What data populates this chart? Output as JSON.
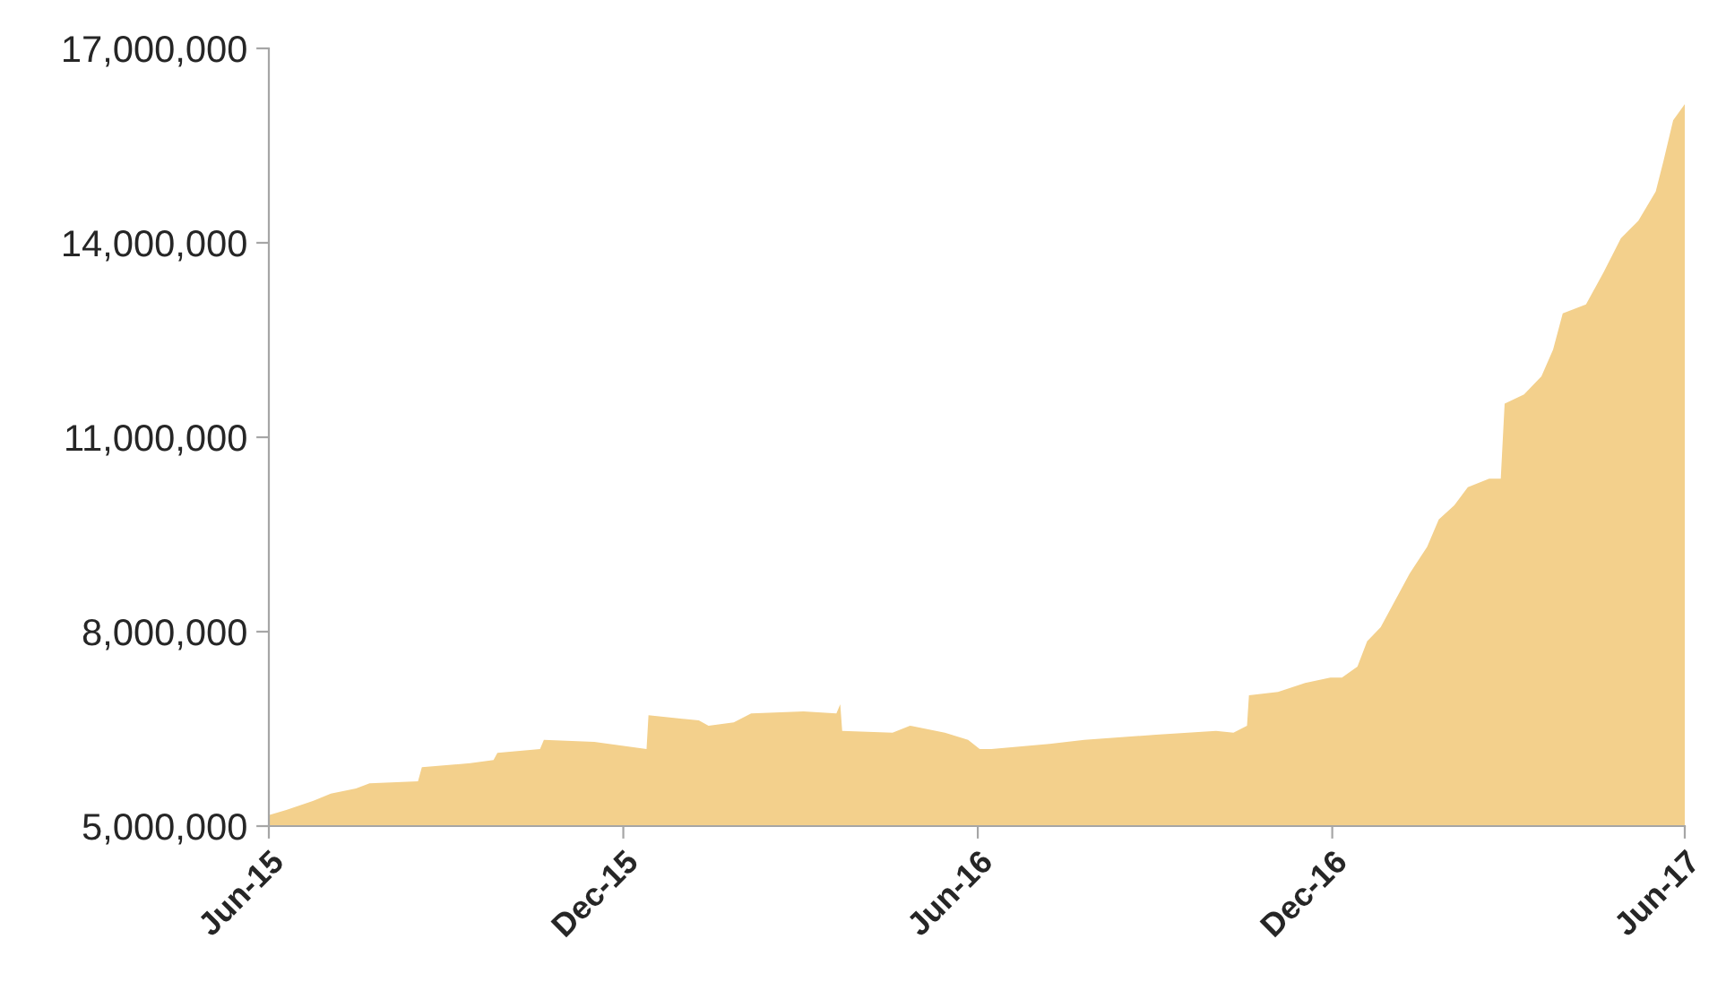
{
  "chart_data": {
    "type": "area",
    "x": [
      "2015-06-01",
      "2015-06-10",
      "2015-06-24",
      "2015-07-03",
      "2015-07-16",
      "2015-07-23",
      "2015-08-17",
      "2015-08-19",
      "2015-09-13",
      "2015-09-25",
      "2015-09-27",
      "2015-10-19",
      "2015-10-21",
      "2015-11-16",
      "2015-12-13",
      "2015-12-14",
      "2016-01-09",
      "2016-01-14",
      "2016-01-27",
      "2016-02-05",
      "2016-03-03",
      "2016-03-20",
      "2016-03-22",
      "2016-03-23",
      "2016-04-18",
      "2016-04-27",
      "2016-05-15",
      "2016-05-27",
      "2016-06-02",
      "2016-06-08",
      "2016-07-08",
      "2016-07-26",
      "2016-09-01",
      "2016-10-02",
      "2016-10-11",
      "2016-10-18",
      "2016-10-19",
      "2016-11-03",
      "2016-11-17",
      "2016-11-30",
      "2016-12-06",
      "2016-12-14",
      "2016-12-19",
      "2016-12-26",
      "2017-01-01",
      "2017-01-10",
      "2017-01-19",
      "2017-01-25",
      "2017-02-02",
      "2017-02-09",
      "2017-02-20",
      "2017-02-26",
      "2017-02-28",
      "2017-03-10",
      "2017-03-19",
      "2017-03-25",
      "2017-03-30",
      "2017-04-11",
      "2017-04-20",
      "2017-04-29",
      "2017-05-08",
      "2017-05-17",
      "2017-05-21",
      "2017-05-26",
      "2017-06-01"
    ],
    "series": [
      {
        "color": "#f3d08c",
        "values": [
          5170000,
          5250000,
          5390000,
          5500000,
          5580000,
          5660000,
          5690000,
          5910000,
          5970000,
          6020000,
          6130000,
          6190000,
          6330000,
          6300000,
          6190000,
          6710000,
          6630000,
          6550000,
          6600000,
          6740000,
          6770000,
          6740000,
          6880000,
          6470000,
          6440000,
          6550000,
          6440000,
          6330000,
          6190000,
          6190000,
          6270000,
          6330000,
          6410000,
          6470000,
          6440000,
          6550000,
          7020000,
          7070000,
          7210000,
          7290000,
          7290000,
          7460000,
          7850000,
          8070000,
          8400000,
          8900000,
          9310000,
          9730000,
          9950000,
          10230000,
          10360000,
          10360000,
          11520000,
          11660000,
          11940000,
          12350000,
          12910000,
          13050000,
          13540000,
          14070000,
          14340000,
          14790000,
          15260000,
          15890000,
          16140000
        ]
      }
    ],
    "xlim": [
      "2015-06-01",
      "2017-06-01"
    ],
    "xticks": [
      {
        "value": "2015-06-01",
        "label": "Jun-15"
      },
      {
        "value": "2015-12-01",
        "label": "Dec-15"
      },
      {
        "value": "2016-06-01",
        "label": "Jun-16"
      },
      {
        "value": "2016-12-01",
        "label": "Dec-16"
      },
      {
        "value": "2017-06-01",
        "label": "Jun-17"
      }
    ],
    "ylim": [
      5000000,
      17000000
    ],
    "yticks": [
      {
        "value": 5000000,
        "label": "5,000,000"
      },
      {
        "value": 8000000,
        "label": "8,000,000"
      },
      {
        "value": 11000000,
        "label": "11,000,000"
      },
      {
        "value": 14000000,
        "label": "14,000,000"
      },
      {
        "value": 17000000,
        "label": "17,000,000"
      }
    ],
    "grid": false,
    "legend": false
  }
}
